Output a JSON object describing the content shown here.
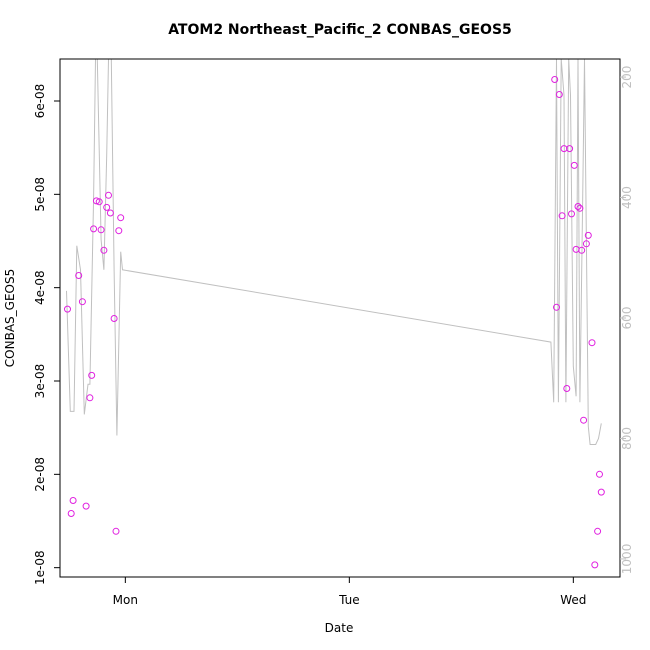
{
  "chart_data": {
    "type": "scatter",
    "title": "ATOM2 Northeast_Pacific_2 CONBAS_GEOS5",
    "xlabel": "Date",
    "ylabel": "CONBAS_GEOS5",
    "x_ticks": [
      "Mon",
      "Tue",
      "Wed"
    ],
    "x_range_hours": [
      -7,
      53
    ],
    "y_ticks": [
      "1e-08",
      "2e-08",
      "3e-08",
      "4e-08",
      "5e-08",
      "6e-08"
    ],
    "ylim": [
      9e-09,
      6.45e-08
    ],
    "y2_ticks": [
      "200",
      "400",
      "600",
      "800",
      "1000"
    ],
    "y2lim": [
      1030,
      170
    ],
    "colors": {
      "points": "#e020e0",
      "line": "#c0c0c0",
      "axis": "#000000",
      "right_axis": "#c0c0c0"
    },
    "series": [
      {
        "kind": "points",
        "x_hours": [
          -6.2,
          -5.8,
          -5.6,
          -5.0,
          -4.6,
          -4.2,
          -3.8,
          -3.6,
          -3.4,
          -3.1,
          -2.8,
          -2.6,
          -2.3,
          -2.0,
          -1.8,
          -1.6,
          -1.2,
          -1.0,
          -0.7,
          -0.5,
          46.0,
          46.2,
          46.5,
          46.8,
          47.0,
          47.3,
          47.6,
          47.8,
          48.1,
          48.3,
          48.5,
          48.7,
          48.9,
          49.1,
          49.4,
          49.6,
          50.0,
          50.3,
          50.6,
          50.8,
          51.0
        ],
        "y": [
          3.77e-08,
          1.58e-08,
          1.72e-08,
          4.13e-08,
          3.85e-08,
          1.66e-08,
          2.82e-08,
          3.06e-08,
          4.63e-08,
          4.93e-08,
          4.92e-08,
          4.62e-08,
          4.4e-08,
          4.86e-08,
          4.99e-08,
          4.8e-08,
          3.67e-08,
          1.39e-08,
          4.61e-08,
          4.75e-08,
          6.23e-08,
          3.79e-08,
          6.07e-08,
          4.77e-08,
          5.49e-08,
          2.92e-08,
          5.49e-08,
          4.79e-08,
          5.31e-08,
          4.41e-08,
          4.87e-08,
          4.85e-08,
          4.4e-08,
          2.58e-08,
          4.47e-08,
          4.56e-08,
          3.41e-08,
          1.03e-08,
          1.39e-08,
          2e-08,
          1.81e-08
        ]
      },
      {
        "kind": "line",
        "axis": "right",
        "x_hours": [
          -6.3,
          -5.9,
          -5.5,
          -5.2,
          -4.8,
          -4.4,
          -4.0,
          -3.8,
          -3.4,
          -3.2,
          -3.0,
          -2.6,
          -2.3,
          -2.0,
          -1.8,
          -1.5,
          -1.2,
          -0.9,
          -0.5,
          -0.3,
          45.6,
          45.9,
          46.2,
          46.4,
          46.7,
          47.0,
          47.2,
          47.5,
          47.7,
          48.0,
          48.3,
          48.5,
          48.7,
          49.0,
          49.2,
          49.6,
          49.8,
          50.1,
          50.4,
          50.7,
          51.0
        ],
        "y": [
          555,
          755,
          755,
          480,
          520,
          760,
          710,
          710,
          400,
          170,
          170,
          470,
          520,
          330,
          170,
          170,
          520,
          795,
          490,
          520,
          640,
          740,
          170,
          740,
          170,
          230,
          740,
          170,
          230,
          680,
          730,
          170,
          740,
          400,
          170,
          780,
          810,
          810,
          810,
          800,
          775
        ]
      }
    ]
  }
}
